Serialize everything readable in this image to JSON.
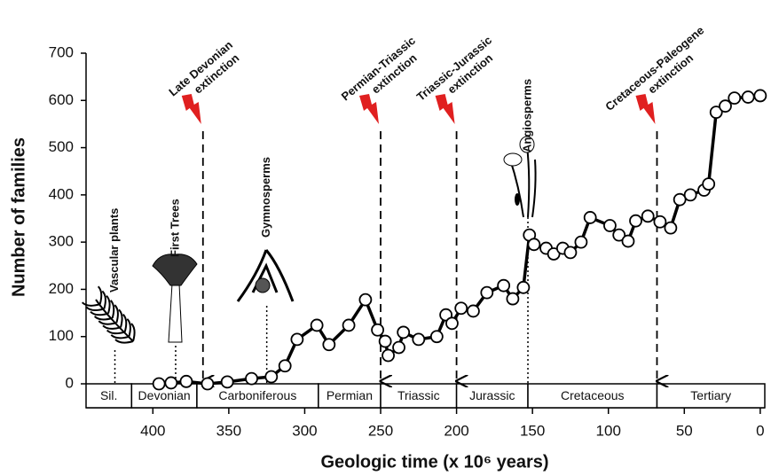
{
  "chart_data": {
    "type": "line",
    "x_label": "Geologic time (x 10⁶ years)",
    "y_label": "Number of families",
    "xlim": [
      444,
      -3
    ],
    "xticks": [
      400,
      350,
      300,
      250,
      200,
      150,
      100,
      50,
      0
    ],
    "ylim": [
      0,
      700
    ],
    "yticks": [
      0,
      100,
      200,
      300,
      400,
      500,
      600,
      700
    ],
    "x": [
      396,
      388,
      378,
      364,
      351,
      335,
      322,
      313,
      305,
      292,
      284,
      271,
      260,
      252,
      247,
      245,
      238,
      235,
      225,
      213,
      207,
      203,
      197,
      189,
      180,
      169,
      163,
      156,
      152,
      149,
      141,
      136,
      130,
      125,
      118,
      112,
      99,
      93,
      87,
      82,
      74,
      66,
      59,
      53,
      46,
      37,
      34,
      29,
      23,
      17,
      8,
      0
    ],
    "series": [
      {
        "color": "#000000",
        "values": [
          0,
          2,
          5,
          0,
          4,
          11,
          15,
          38,
          94,
          124,
          83,
          124,
          178,
          114,
          90,
          60,
          77,
          109,
          94,
          100,
          146,
          128,
          160,
          154,
          193,
          208,
          180,
          204,
          315,
          295,
          287,
          275,
          287,
          278,
          300,
          352,
          335,
          315,
          302,
          345,
          355,
          343,
          330,
          390,
          400,
          410,
          423,
          575,
          588,
          605,
          607,
          610
        ]
      }
    ],
    "periods": [
      {
        "name": "Sil.",
        "start": 444,
        "end": 414
      },
      {
        "name": "Devonian",
        "start": 414,
        "end": 371
      },
      {
        "name": "Carboniferous",
        "start": 371,
        "end": 291
      },
      {
        "name": "Permian",
        "start": 291,
        "end": 250
      },
      {
        "name": "Triassic",
        "start": 250,
        "end": 200
      },
      {
        "name": "Jurassic",
        "start": 200,
        "end": 153
      },
      {
        "name": "Cretaceous",
        "start": 153,
        "end": 68
      },
      {
        "name": "Tertiary",
        "start": 68,
        "end": -3
      }
    ],
    "extinctions": [
      {
        "lines": [
          "Late Devonian",
          "extinction"
        ],
        "x": 367
      },
      {
        "lines": [
          "Permian-Triassic",
          "extinction"
        ],
        "x": 250
      },
      {
        "lines": [
          "Triassic-Jurassic",
          "extinction"
        ],
        "x": 200
      },
      {
        "lines": [
          "Cretaceous-Paleogene",
          "extinction"
        ],
        "x": 68
      }
    ],
    "milestones": [
      {
        "label": "Vascular plants",
        "x": 425
      },
      {
        "label": "First Trees",
        "x": 385
      },
      {
        "label": "Gymnosperms",
        "x": 325
      },
      {
        "label": "Angiosperms",
        "x": 153
      }
    ]
  }
}
